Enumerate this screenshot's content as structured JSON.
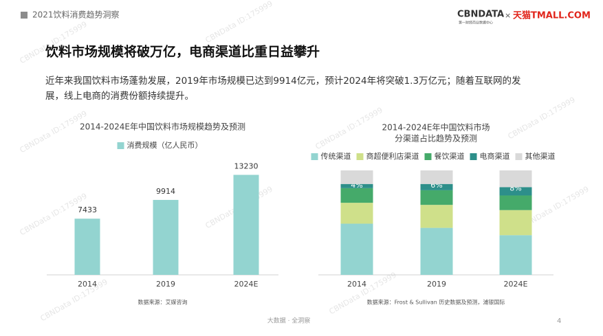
{
  "header": {
    "section": "2021饮料消费趋势洞察",
    "logo_main": "CBNDATA",
    "logo_sub": "第一财经商业数据中心",
    "logo_sep": "×",
    "logo_partner": "天猫TMALL.COM"
  },
  "title": "饮料市场规模将破万亿，电商渠道比重日益攀升",
  "body": [
    "近年来我国饮料市场蓬勃发展，2019年市场规模已达到9914亿元，预计2024年将突破1.3万亿元；随着互联网的发",
    "展，线上电商的消费份额持续提升。"
  ],
  "watermark": "CBNData ID:175999",
  "chart_data": [
    {
      "type": "bar",
      "title": "2014-2024E年中国饮料市场规模趋势及预测",
      "categories": [
        "2014",
        "2019",
        "2024E"
      ],
      "series": [
        {
          "name": "消费规模（亿人民币）",
          "color": "#93d4d0",
          "values": [
            7433,
            9914,
            13230
          ]
        }
      ],
      "ylim": [
        0,
        15000
      ],
      "source": "数据来源：艾媒咨询"
    },
    {
      "type": "stacked_bar",
      "title": [
        "2014-2024E年中国饮料市场",
        "分渠道占比趋势及预测"
      ],
      "categories": [
        "2014",
        "2019",
        "2024E"
      ],
      "series": [
        {
          "name": "传统渠道",
          "color": "#93d4d0",
          "values": [
            49,
            45,
            38
          ]
        },
        {
          "name": "商超便利店渠道",
          "color": "#cfe08a",
          "values": [
            20,
            22,
            24
          ]
        },
        {
          "name": "餐饮渠道",
          "color": "#45aa6a",
          "values": [
            14,
            14,
            14
          ]
        },
        {
          "name": "电商渠道",
          "color": "#2d8f8a",
          "values": [
            4,
            6,
            8
          ],
          "value_labels": [
            "4%",
            "6%",
            "8%"
          ]
        },
        {
          "name": "其他渠道",
          "color": "#d9d9d9",
          "values": [
            13,
            13,
            16
          ]
        }
      ],
      "ylim": [
        0,
        100
      ],
      "source": "数据来源：Frost & Sullivan 历史数据及预测，浦银国际"
    }
  ],
  "footer": {
    "tagline": "大数据 · 全洞察",
    "page": "4"
  }
}
